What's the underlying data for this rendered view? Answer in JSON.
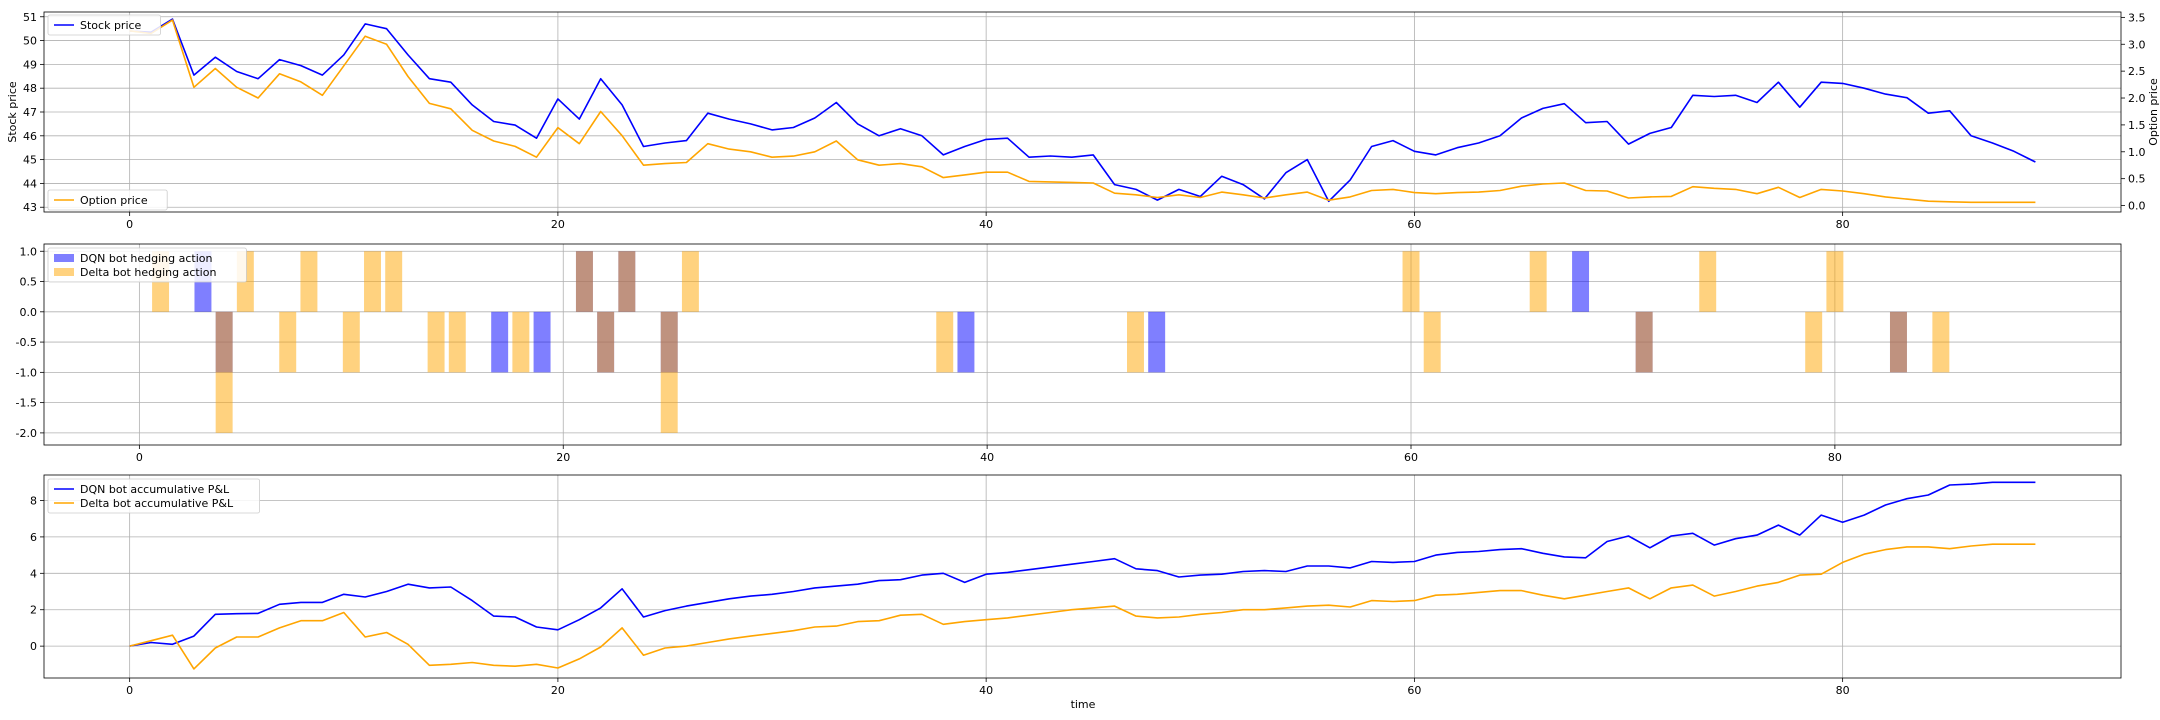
{
  "figure": {
    "xlabel": "time"
  },
  "chart_data": [
    {
      "type": "line",
      "x_range": [
        0,
        90
      ],
      "xticks": [
        0,
        20,
        40,
        60,
        80
      ],
      "xlim": [
        -4,
        93
      ],
      "ylabel": "Stock price",
      "ylim": [
        42.8,
        51.2
      ],
      "yticks": [
        43,
        44,
        45,
        46,
        47,
        48,
        49,
        50,
        51
      ],
      "y2label": "Option price",
      "y2lim": [
        -0.12,
        3.6
      ],
      "y2ticks": [
        0.0,
        0.5,
        1.0,
        1.5,
        2.0,
        2.5,
        3.0,
        3.5
      ],
      "grid": true,
      "series": [
        {
          "name": "Stock price",
          "axis": "left",
          "color": "#0000ff",
          "values": [
            50.4,
            50.35,
            50.9,
            48.55,
            49.3,
            48.7,
            48.4,
            49.2,
            48.95,
            48.55,
            49.4,
            50.7,
            50.5,
            49.4,
            48.4,
            48.25,
            47.3,
            46.6,
            46.45,
            45.9,
            47.55,
            46.7,
            48.4,
            47.3,
            45.55,
            45.7,
            45.8,
            46.95,
            46.7,
            46.5,
            46.25,
            46.35,
            46.75,
            47.4,
            46.5,
            46.0,
            46.3,
            46.0,
            45.2,
            45.55,
            45.85,
            45.9,
            45.1,
            45.15,
            45.1,
            45.2,
            43.95,
            43.75,
            43.3,
            43.75,
            43.45,
            44.3,
            43.95,
            43.35,
            44.45,
            45.0,
            43.25,
            44.15,
            45.55,
            45.8,
            45.35,
            45.2,
            45.5,
            45.7,
            46.0,
            46.75,
            47.15,
            47.35,
            46.55,
            46.6,
            45.65,
            46.1,
            46.35,
            47.7,
            47.65,
            47.7,
            47.4,
            48.25,
            47.2,
            48.25,
            48.2,
            48.0,
            47.75,
            47.6,
            46.95,
            47.05,
            46.0,
            45.7,
            45.35,
            44.9
          ]
        },
        {
          "name": "Option price",
          "axis": "right",
          "color": "#ffa500",
          "values": [
            3.25,
            3.2,
            3.45,
            2.2,
            2.55,
            2.2,
            2.0,
            2.45,
            2.3,
            2.05,
            2.6,
            3.15,
            3.0,
            2.4,
            1.9,
            1.8,
            1.4,
            1.2,
            1.1,
            0.9,
            1.45,
            1.15,
            1.75,
            1.3,
            0.75,
            0.78,
            0.8,
            1.15,
            1.05,
            1.0,
            0.9,
            0.92,
            1.0,
            1.2,
            0.85,
            0.75,
            0.78,
            0.72,
            0.52,
            0.57,
            0.62,
            0.62,
            0.45,
            0.44,
            0.43,
            0.42,
            0.23,
            0.2,
            0.15,
            0.2,
            0.15,
            0.25,
            0.2,
            0.14,
            0.2,
            0.25,
            0.1,
            0.16,
            0.28,
            0.3,
            0.24,
            0.22,
            0.24,
            0.25,
            0.28,
            0.36,
            0.4,
            0.42,
            0.28,
            0.27,
            0.14,
            0.16,
            0.17,
            0.35,
            0.32,
            0.3,
            0.22,
            0.34,
            0.15,
            0.3,
            0.27,
            0.22,
            0.16,
            0.12,
            0.08,
            0.07,
            0.06,
            0.06,
            0.06,
            0.06
          ]
        }
      ],
      "legend": "upper-left"
    },
    {
      "type": "bar",
      "xlim": [
        -4.5,
        93.5
      ],
      "xticks": [
        0,
        20,
        40,
        60,
        80
      ],
      "ylim": [
        -2.2,
        1.12
      ],
      "yticks": [
        -2.0,
        -1.5,
        -1.0,
        -0.5,
        0.0,
        0.5,
        1.0
      ],
      "grid": true,
      "series": [
        {
          "name": "DQN bot hedging action",
          "color": "#0000ff",
          "alpha": 0.5,
          "bars": [
            [
              3,
              1
            ],
            [
              4,
              -1
            ],
            [
              17,
              -1
            ],
            [
              19,
              -1
            ],
            [
              21,
              1
            ],
            [
              22,
              -1
            ],
            [
              23,
              1
            ],
            [
              25,
              -1
            ],
            [
              39,
              -1
            ],
            [
              48,
              -1
            ],
            [
              68,
              1
            ],
            [
              71,
              -1
            ],
            [
              83,
              -1
            ]
          ]
        },
        {
          "name": "Delta bot hedging action",
          "color": "#ffa500",
          "alpha": 0.5,
          "bars": [
            [
              1,
              1
            ],
            [
              4,
              -2
            ],
            [
              5,
              1
            ],
            [
              7,
              -1
            ],
            [
              8,
              1
            ],
            [
              10,
              -1
            ],
            [
              11,
              1
            ],
            [
              12,
              1
            ],
            [
              14,
              -1
            ],
            [
              15,
              -1
            ],
            [
              18,
              -1
            ],
            [
              21,
              1
            ],
            [
              22,
              -1
            ],
            [
              23,
              1
            ],
            [
              25,
              -2
            ],
            [
              26,
              1
            ],
            [
              38,
              -1
            ],
            [
              47,
              -1
            ],
            [
              60,
              1
            ],
            [
              61,
              -1
            ],
            [
              66,
              1
            ],
            [
              71,
              -1
            ],
            [
              74,
              1
            ],
            [
              79,
              -1
            ],
            [
              80,
              1
            ],
            [
              83,
              -1
            ],
            [
              85,
              -1
            ]
          ]
        }
      ],
      "legend": "upper-left"
    },
    {
      "type": "line",
      "x_range": [
        0,
        90
      ],
      "xticks": [
        0,
        20,
        40,
        60,
        80
      ],
      "xlim": [
        -4,
        93
      ],
      "ylim": [
        -1.75,
        9.4
      ],
      "yticks": [
        0,
        2,
        4,
        6,
        8
      ],
      "xlabel": "time",
      "grid": true,
      "series": [
        {
          "name": "DQN bot accumulative P&L",
          "color": "#0000ff",
          "values": [
            0.0,
            0.2,
            0.1,
            0.55,
            1.75,
            1.78,
            1.8,
            2.3,
            2.4,
            2.4,
            2.85,
            2.7,
            3.0,
            3.4,
            3.2,
            3.25,
            2.5,
            1.65,
            1.6,
            1.05,
            0.9,
            1.45,
            2.1,
            3.15,
            1.6,
            1.95,
            2.2,
            2.4,
            2.6,
            2.75,
            2.85,
            3.0,
            3.2,
            3.3,
            3.4,
            3.6,
            3.65,
            3.9,
            4.0,
            3.5,
            3.95,
            4.05,
            4.2,
            4.35,
            4.5,
            4.65,
            4.8,
            4.25,
            4.15,
            3.8,
            3.9,
            3.95,
            4.1,
            4.15,
            4.1,
            4.4,
            4.4,
            4.3,
            4.65,
            4.6,
            4.65,
            5.0,
            5.15,
            5.2,
            5.3,
            5.35,
            5.1,
            4.9,
            4.85,
            5.75,
            6.05,
            5.4,
            6.05,
            6.2,
            5.55,
            5.9,
            6.1,
            6.65,
            6.1,
            7.2,
            6.8,
            7.2,
            7.75,
            8.1,
            8.3,
            8.85,
            8.9,
            9.0,
            9.0,
            9.0
          ]
        },
        {
          "name": "Delta bot accumulative P&L",
          "color": "#ffa500",
          "values": [
            0.0,
            0.3,
            0.6,
            -1.25,
            -0.1,
            0.5,
            0.5,
            1.0,
            1.4,
            1.4,
            1.85,
            0.5,
            0.75,
            0.1,
            -1.05,
            -1.0,
            -0.9,
            -1.05,
            -1.1,
            -1.0,
            -1.2,
            -0.7,
            -0.05,
            1.0,
            -0.5,
            -0.1,
            0.0,
            0.2,
            0.4,
            0.55,
            0.7,
            0.85,
            1.05,
            1.1,
            1.35,
            1.4,
            1.7,
            1.75,
            1.2,
            1.35,
            1.45,
            1.55,
            1.7,
            1.85,
            2.0,
            2.1,
            2.2,
            1.65,
            1.55,
            1.6,
            1.75,
            1.85,
            2.0,
            2.0,
            2.1,
            2.2,
            2.25,
            2.15,
            2.5,
            2.45,
            2.5,
            2.8,
            2.85,
            2.95,
            3.05,
            3.05,
            2.8,
            2.6,
            2.8,
            3.0,
            3.2,
            2.6,
            3.2,
            3.35,
            2.75,
            3.0,
            3.3,
            3.5,
            3.9,
            3.95,
            4.6,
            5.05,
            5.3,
            5.45,
            5.45,
            5.35,
            5.5,
            5.6,
            5.6,
            5.6
          ]
        }
      ],
      "legend": "upper-left"
    }
  ]
}
